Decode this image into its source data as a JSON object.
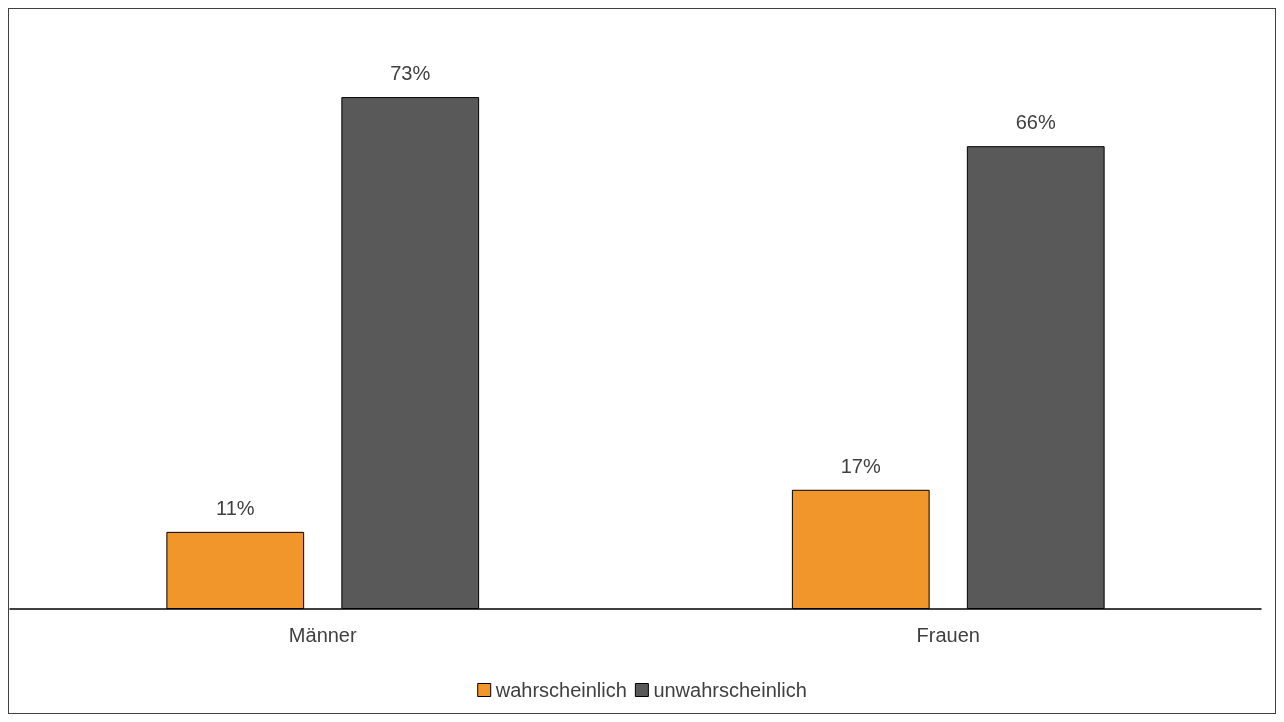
{
  "chart_data": {
    "type": "bar",
    "categories": [
      "Männer",
      "Frauen"
    ],
    "series": [
      {
        "name": "wahrscheinlich",
        "color": "#f0962a",
        "values": [
          11,
          17
        ],
        "value_labels": [
          "11%",
          "17%"
        ]
      },
      {
        "name": "unwahrscheinlich",
        "color": "#595959",
        "values": [
          73,
          66
        ],
        "value_labels": [
          "73%",
          "66%"
        ]
      }
    ],
    "legend": "bottom"
  }
}
